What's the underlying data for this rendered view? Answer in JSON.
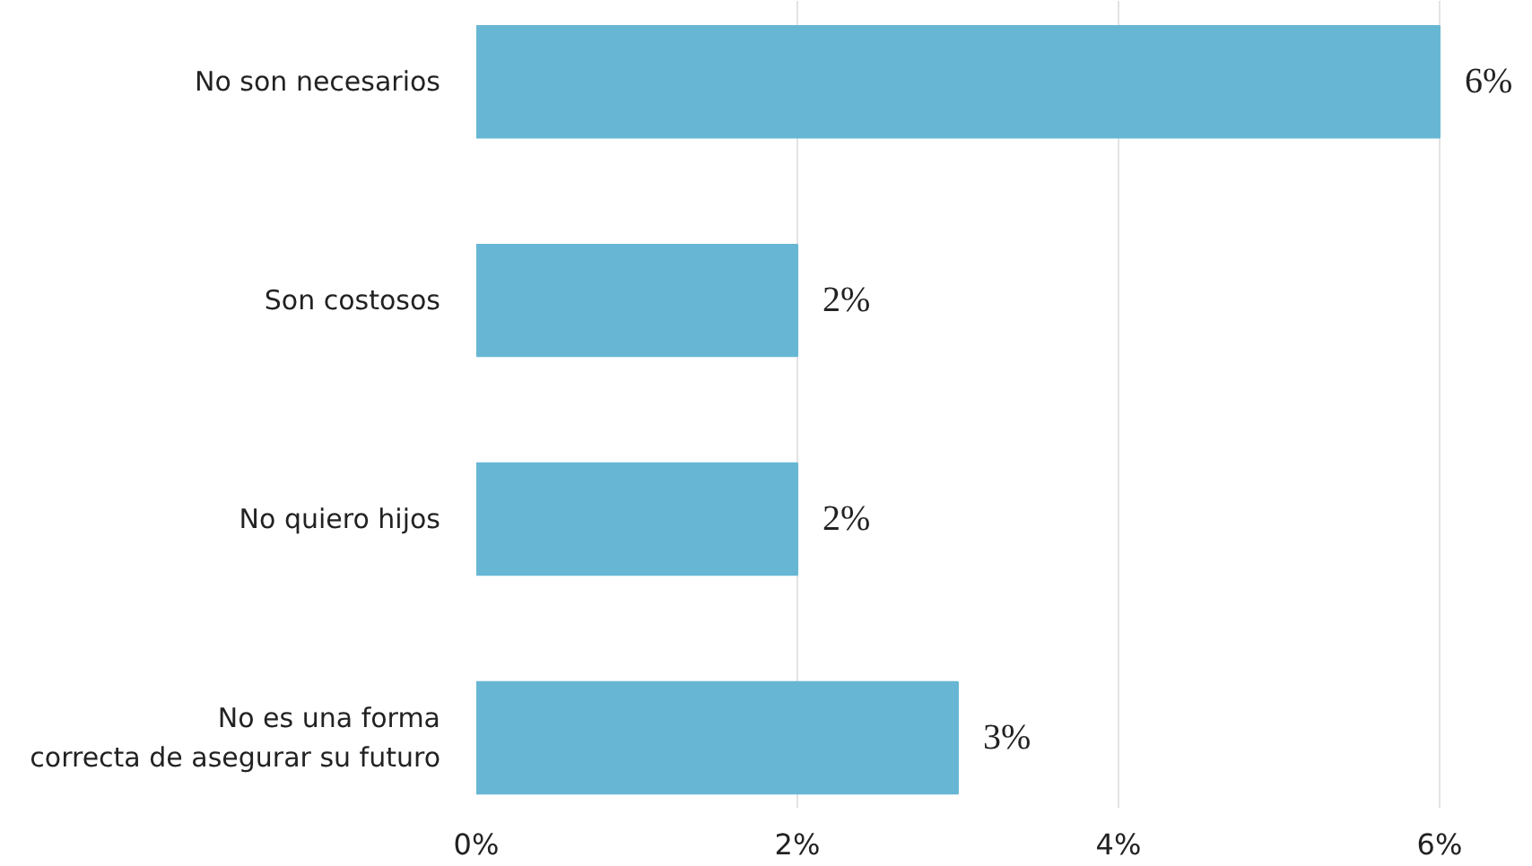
{
  "chart_data": {
    "type": "bar",
    "orientation": "horizontal",
    "categories": [
      "No son necesarios",
      "Son costosos",
      "No quiero hijos",
      "No es una forma\ncorrecta de asegurar su futuro"
    ],
    "values": [
      6,
      2,
      2,
      3
    ],
    "color": "#67b7d4",
    "value_labels": [
      "6%",
      "2%",
      "2%",
      "3%"
    ],
    "xlim": [
      0,
      6
    ],
    "xticks": [
      {
        "value": 0,
        "label": "0%"
      },
      {
        "value": 2,
        "label": "2%"
      },
      {
        "value": 4,
        "label": "4%"
      },
      {
        "value": 6,
        "label": "6%"
      }
    ],
    "grid": "x"
  }
}
